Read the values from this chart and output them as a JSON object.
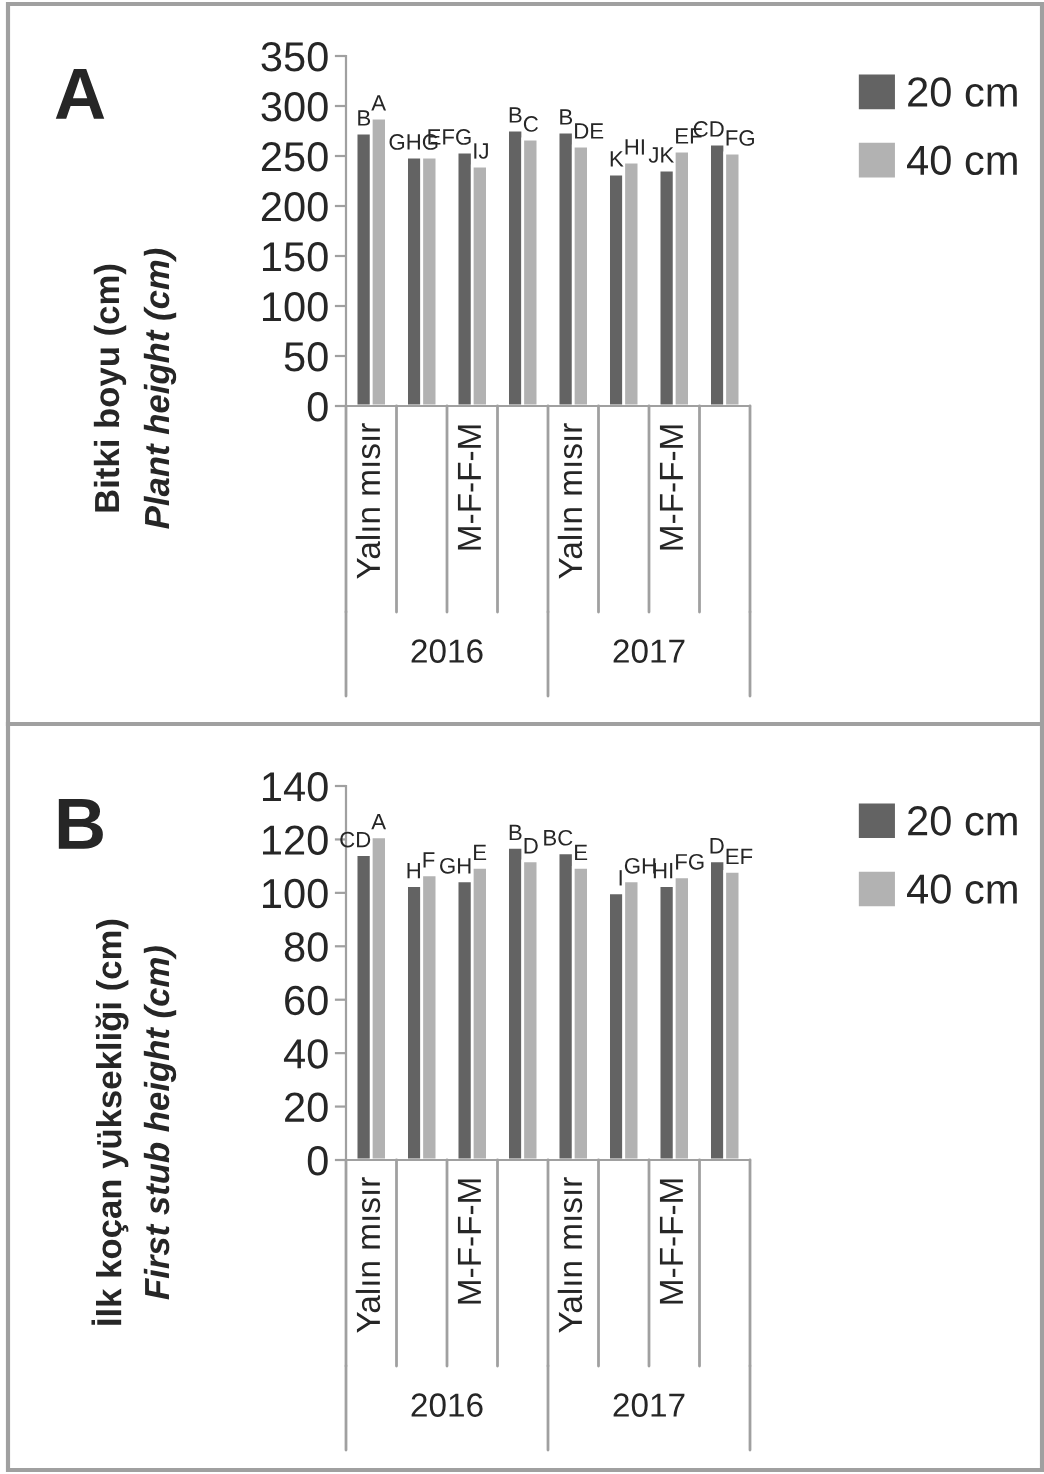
{
  "chart_data": [
    {
      "type": "bar",
      "title": "A",
      "ylabel": "Bitki boyu (cm)\nPlant height (cm)",
      "categories": [
        "Yalın mısır",
        null,
        "M-F-F-M",
        null,
        "Yalın mısır",
        null,
        "M-F-F-M",
        null
      ],
      "series": [
        {
          "name": "20 cm",
          "color": "#636363",
          "values": [
            273,
            249,
            254,
            276,
            274,
            232,
            236,
            262
          ],
          "value_labels": [
            "B",
            "GH",
            "EFG",
            "B",
            "B",
            "K",
            "JK",
            "CD"
          ]
        },
        {
          "name": "40 cm",
          "color": "#b2b2b2",
          "values": [
            288,
            249,
            240,
            267,
            260,
            244,
            255,
            253
          ],
          "value_labels": [
            "A",
            "G",
            "IJ",
            "C",
            "DE",
            "HI",
            "EF",
            "FG"
          ]
        }
      ],
      "ylim": [
        0,
        350
      ],
      "yticks": [
        0,
        50,
        100,
        150,
        200,
        250,
        300,
        350
      ],
      "annotations": [
        "2016",
        "2017"
      ],
      "legend": "right",
      "grid": false
    },
    {
      "type": "bar",
      "title": "B",
      "ylabel": "İlk koçan yüksekliği (cm)\nFirst stub height (cm)",
      "categories": [
        "Yalın mısır",
        null,
        "M-F-F-M",
        null,
        "Yalın mısır",
        null,
        "M-F-F-M",
        null
      ],
      "series": [
        {
          "name": "20 cm",
          "color": "#636363",
          "values": [
            114.3,
            102.7,
            104.5,
            117,
            115,
            100,
            102.7,
            112
          ],
          "value_labels": [
            "CD",
            "H",
            "GH",
            "B",
            "BC",
            "I",
            "HI",
            "D"
          ]
        },
        {
          "name": "40 cm",
          "color": "#b2b2b2",
          "values": [
            121,
            106.7,
            109.5,
            112,
            109.5,
            104.5,
            106,
            108
          ],
          "value_labels": [
            "A",
            "F",
            "E",
            "D",
            "E",
            "GH",
            "FG",
            "EF"
          ]
        }
      ],
      "ylim": [
        0,
        140
      ],
      "yticks": [
        0,
        20,
        40,
        60,
        80,
        100,
        120,
        140
      ],
      "annotations": [
        "2016",
        "2017"
      ],
      "legend": "right",
      "grid": false
    }
  ]
}
